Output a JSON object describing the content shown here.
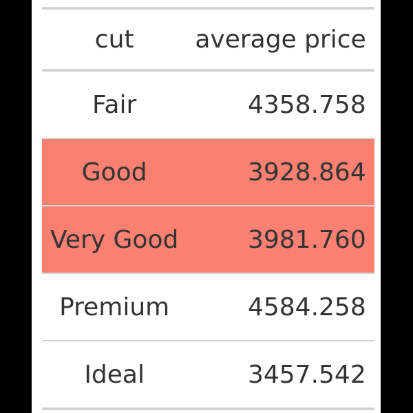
{
  "table": {
    "columns": {
      "cut": "cut",
      "price": "average price"
    },
    "highlight_color": "#FA8072",
    "rows": [
      {
        "cut": "Fair",
        "price": "4358.758",
        "highlighted": false
      },
      {
        "cut": "Good",
        "price": "3928.864",
        "highlighted": true
      },
      {
        "cut": "Very Good",
        "price": "3981.760",
        "highlighted": true
      },
      {
        "cut": "Premium",
        "price": "4584.258",
        "highlighted": false
      },
      {
        "cut": "Ideal",
        "price": "3457.542",
        "highlighted": false
      }
    ]
  }
}
